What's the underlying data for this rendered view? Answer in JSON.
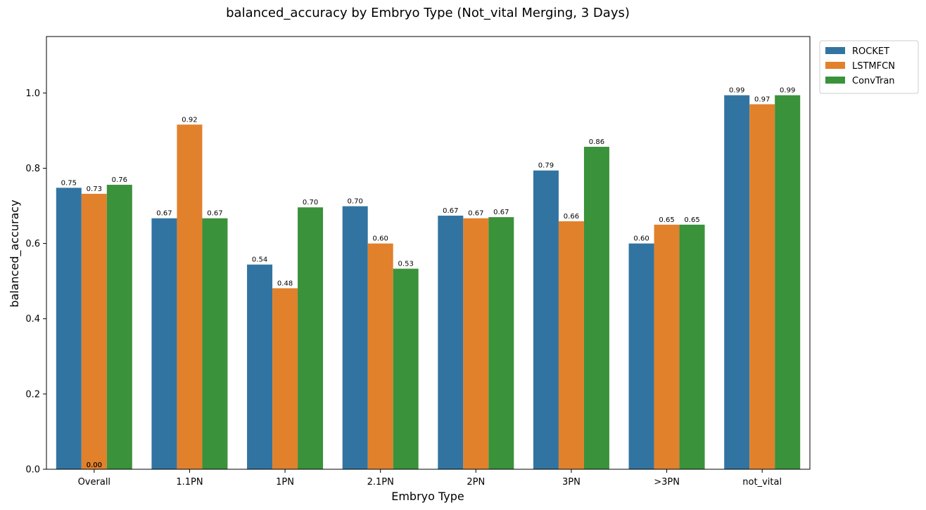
{
  "chart_data": {
    "type": "bar",
    "title": "balanced_accuracy by Embryo Type (Not_vital Merging, 3 Days)",
    "xlabel": "Embryo Type",
    "ylabel": "balanced_accuracy",
    "ylim": [
      0,
      1.15
    ],
    "yticks": [
      0.0,
      0.2,
      0.4,
      0.6,
      0.8,
      1.0
    ],
    "ytick_labels": [
      "0.0",
      "0.2",
      "0.4",
      "0.6",
      "0.8",
      "1.0"
    ],
    "categories": [
      "Overall",
      "1.1PN",
      "1PN",
      "2.1PN",
      "2PN",
      "3PN",
      ">3PN",
      "not_vital"
    ],
    "series": [
      {
        "name": "ROCKET",
        "color": "#3274a1",
        "values": [
          0.748,
          0.667,
          0.544,
          0.699,
          0.674,
          0.794,
          0.6,
          0.994
        ],
        "labels": [
          "0.75",
          "0.67",
          "0.54",
          "0.70",
          "0.67",
          "0.79",
          "0.60",
          "0.99"
        ]
      },
      {
        "name": "LSTMFCN",
        "color": "#e1812c",
        "values": [
          0.732,
          0.916,
          0.481,
          0.6,
          0.667,
          0.659,
          0.65,
          0.97
        ],
        "labels": [
          "0.73",
          "0.92",
          "0.48",
          "0.60",
          "0.67",
          "0.66",
          "0.65",
          "0.97"
        ]
      },
      {
        "name": "ConvTran",
        "color": "#3a923a",
        "values": [
          0.756,
          0.667,
          0.696,
          0.533,
          0.67,
          0.857,
          0.65,
          0.994
        ],
        "labels": [
          "0.76",
          "0.67",
          "0.70",
          "0.53",
          "0.67",
          "0.86",
          "0.65",
          "0.99"
        ]
      }
    ],
    "extra_annotations": [
      {
        "category": "Overall",
        "text": "0.00"
      },
      {
        "category": "Overall",
        "text": "0.00"
      }
    ],
    "legend_position": "outside-top-right",
    "grid": false
  }
}
